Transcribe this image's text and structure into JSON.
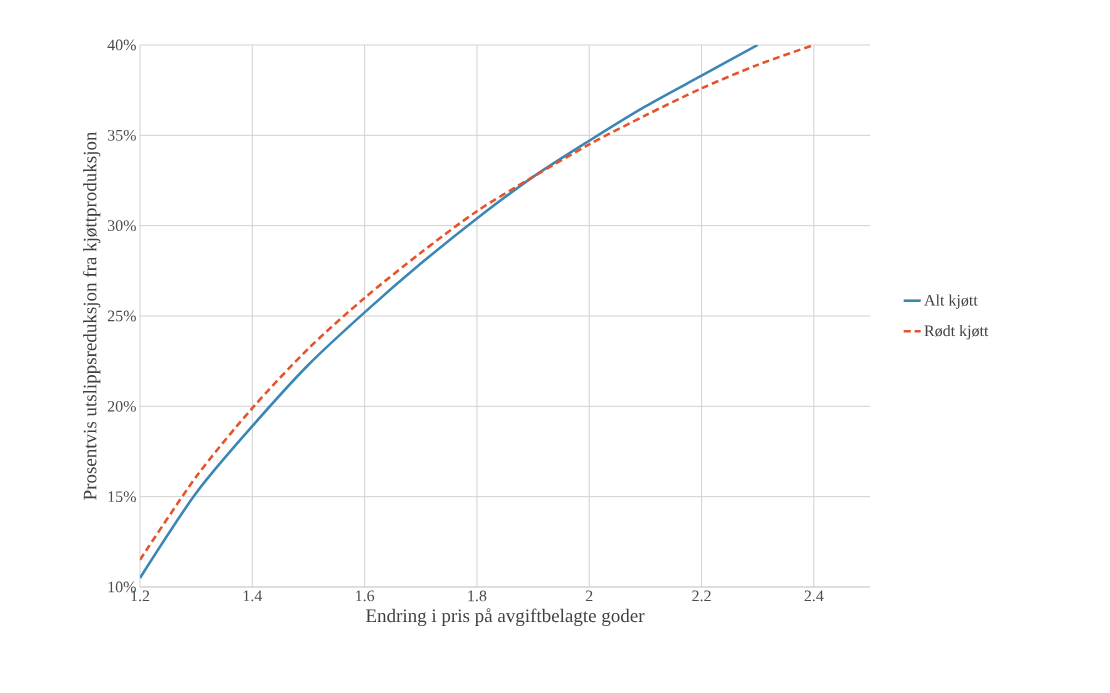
{
  "chart_data": {
    "type": "line",
    "xlabel": "Endring i pris på avgiftbelagte goder",
    "ylabel": "Prosentvis utslippsreduksjon fra kjøttproduksjon",
    "xlim": [
      1.2,
      2.5
    ],
    "xticks": [
      1.2,
      1.4,
      1.6,
      1.8,
      2,
      2.2,
      2.4
    ],
    "ylim": [
      10,
      40
    ],
    "yticks": [
      {
        "value": 10,
        "label": "10%"
      },
      {
        "value": 15,
        "label": "15%"
      },
      {
        "value": 20,
        "label": "20%"
      },
      {
        "value": 25,
        "label": "25%"
      },
      {
        "value": 30,
        "label": "30%"
      },
      {
        "value": 35,
        "label": "35%"
      },
      {
        "value": 40,
        "label": "40%"
      }
    ],
    "grid": true,
    "legend": "right",
    "series": [
      {
        "name": "Alt kjøtt",
        "color": "#3a86b4",
        "line_style": "solid",
        "x": [
          1.2,
          1.3,
          1.4,
          1.5,
          1.6,
          1.7,
          1.8,
          1.9,
          2.0,
          2.1,
          2.2,
          2.3
        ],
        "values": [
          10.5,
          15.2,
          18.9,
          22.3,
          25.2,
          27.9,
          30.4,
          32.7,
          34.7,
          36.6,
          38.3,
          40
        ]
      },
      {
        "name": "Rødt kjøtt",
        "color": "#e5532a",
        "line_style": "dashed",
        "x": [
          1.2,
          1.3,
          1.4,
          1.5,
          1.6,
          1.7,
          1.8,
          1.9,
          2.0,
          2.1,
          2.2,
          2.3,
          2.4
        ],
        "values": [
          11.5,
          16.1,
          19.9,
          23.2,
          26.0,
          28.5,
          30.8,
          32.7,
          34.5,
          36.1,
          37.6,
          38.9,
          40
        ]
      }
    ]
  }
}
